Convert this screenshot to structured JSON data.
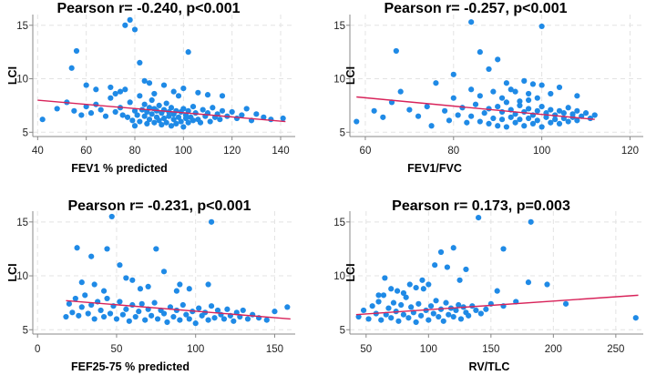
{
  "chart_data": [
    {
      "type": "scatter",
      "title": "Pearson r= -0.240, p<0.001",
      "xlabel": "FEV1 % predicted",
      "ylabel": "LCI",
      "xlim": [
        38,
        146
      ],
      "ylim": [
        4.6,
        16
      ],
      "xticks": [
        "40",
        "60",
        "80",
        "100",
        "120",
        "140"
      ],
      "yticks": [
        "5",
        "10",
        "15"
      ],
      "fit": {
        "x": [
          40,
          142
        ],
        "y": [
          8.0,
          6.0
        ]
      },
      "points_x": [
        42,
        48,
        52,
        55,
        58,
        60,
        62,
        64,
        66,
        68,
        70,
        72,
        74,
        75,
        76,
        77,
        78,
        79,
        80,
        80,
        81,
        82,
        82,
        83,
        84,
        84,
        85,
        85,
        86,
        86,
        87,
        87,
        88,
        88,
        89,
        89,
        90,
        90,
        91,
        91,
        92,
        92,
        93,
        93,
        94,
        94,
        95,
        95,
        96,
        96,
        97,
        97,
        98,
        98,
        99,
        99,
        100,
        100,
        101,
        101,
        102,
        102,
        103,
        104,
        104,
        105,
        106,
        107,
        108,
        109,
        110,
        111,
        112,
        113,
        114,
        115,
        116,
        118,
        120,
        122,
        124,
        126,
        128,
        130,
        133,
        136,
        141,
        54,
        56,
        76,
        78,
        80,
        82,
        86,
        88,
        102,
        60,
        64,
        70,
        74,
        72,
        84,
        92,
        96,
        100,
        106,
        110,
        116
      ],
      "points_y": [
        6.2,
        7.2,
        7.8,
        7.0,
        6.6,
        7.4,
        6.8,
        7.6,
        7.1,
        6.5,
        8.2,
        6.9,
        7.3,
        6.6,
        9.0,
        6.4,
        7.8,
        6.1,
        7.0,
        5.6,
        6.6,
        8.4,
        6.0,
        7.1,
        6.5,
        7.6,
        5.8,
        6.9,
        7.3,
        6.2,
        8.0,
        6.7,
        5.9,
        7.2,
        6.4,
        7.0,
        6.1,
        7.5,
        5.7,
        6.8,
        6.3,
        7.1,
        5.9,
        7.7,
        6.5,
        6.9,
        5.6,
        7.3,
        6.2,
        6.7,
        5.8,
        7.0,
        6.4,
        8.4,
        6.0,
        6.9,
        5.5,
        7.2,
        6.3,
        6.6,
        5.9,
        7.0,
        6.4,
        6.1,
        7.4,
        6.8,
        6.2,
        5.9,
        7.1,
        6.5,
        6.8,
        6.0,
        7.3,
        6.4,
        6.7,
        6.2,
        7.0,
        6.5,
        6.9,
        6.3,
        6.6,
        7.2,
        6.1,
        6.7,
        6.4,
        6.2,
        6.3,
        11.0,
        12.6,
        15.0,
        15.5,
        14.6,
        11.5,
        9.6,
        8.6,
        12.5,
        9.4,
        9.0,
        9.2,
        8.8,
        8.6,
        9.8,
        9.4,
        8.8,
        9.1,
        8.7,
        8.5,
        8.4
      ]
    },
    {
      "type": "scatter",
      "title": "Pearson r= -0.257, p<0.001",
      "xlabel": "FEV1/FVC",
      "ylabel": "LCI",
      "xlim": [
        56.5,
        123
      ],
      "ylim": [
        4.6,
        16
      ],
      "xticks": [
        "60",
        "80",
        "100",
        "120"
      ],
      "yticks": [
        "5",
        "10",
        "15"
      ],
      "fit": {
        "x": [
          58,
          112
        ],
        "y": [
          8.3,
          6.2
        ]
      },
      "points_x": [
        58,
        62,
        64,
        66,
        68,
        70,
        72,
        74,
        75,
        76,
        78,
        79,
        80,
        81,
        82,
        83,
        84,
        84,
        85,
        86,
        86,
        87,
        88,
        88,
        89,
        89,
        90,
        90,
        91,
        91,
        92,
        92,
        93,
        93,
        94,
        94,
        95,
        95,
        96,
        96,
        97,
        97,
        98,
        98,
        99,
        99,
        100,
        100,
        101,
        101,
        102,
        102,
        103,
        103,
        104,
        104,
        105,
        105,
        106,
        106,
        107,
        107,
        108,
        108,
        109,
        110,
        111,
        112,
        67,
        84,
        86,
        90,
        100,
        80,
        88,
        92,
        96,
        98,
        104,
        94,
        102,
        108,
        100,
        91,
        93,
        97,
        99,
        95,
        97
      ],
      "points_y": [
        6.0,
        7.0,
        6.4,
        7.8,
        8.8,
        7.1,
        6.5,
        7.4,
        5.6,
        9.6,
        7.0,
        6.1,
        8.2,
        6.6,
        7.3,
        5.9,
        9.0,
        6.5,
        7.6,
        6.0,
        8.4,
        6.8,
        5.8,
        7.2,
        6.3,
        8.8,
        5.6,
        7.4,
        6.2,
        6.9,
        5.5,
        7.8,
        6.4,
        7.1,
        5.9,
        6.7,
        6.2,
        7.5,
        5.6,
        6.9,
        6.3,
        7.2,
        5.8,
        6.6,
        6.1,
        7.0,
        5.5,
        7.4,
        6.4,
        6.8,
        5.9,
        7.1,
        6.2,
        6.6,
        5.8,
        7.0,
        6.3,
        6.8,
        6.0,
        7.3,
        6.4,
        6.7,
        6.1,
        7.0,
        6.5,
        6.8,
        6.3,
        6.6,
        12.6,
        15.3,
        12.5,
        11.8,
        14.9,
        10.4,
        10.9,
        9.6,
        9.8,
        9.5,
        9.2,
        8.8,
        8.6,
        8.4,
        9.4,
        8.2,
        9.0,
        8.6,
        8.2,
        7.9,
        8.0
      ]
    },
    {
      "type": "scatter",
      "title": "Pearson r= -0.231, p<0.001",
      "xlabel": "FEF25-75 % predicted",
      "ylabel": "LCI",
      "xlim": [
        -3,
        163
      ],
      "ylim": [
        4.6,
        16
      ],
      "xticks": [
        "0",
        "50",
        "100",
        "150"
      ],
      "yticks": [
        "5",
        "10",
        "15"
      ],
      "fit": {
        "x": [
          18,
          160
        ],
        "y": [
          7.7,
          6.0
        ]
      },
      "points_x": [
        18,
        20,
        22,
        24,
        26,
        28,
        30,
        32,
        34,
        36,
        38,
        40,
        42,
        44,
        46,
        48,
        50,
        52,
        54,
        56,
        58,
        60,
        62,
        64,
        66,
        68,
        70,
        72,
        74,
        76,
        78,
        80,
        82,
        84,
        86,
        88,
        90,
        92,
        94,
        96,
        98,
        100,
        102,
        104,
        106,
        108,
        110,
        112,
        114,
        116,
        118,
        120,
        122,
        124,
        126,
        128,
        130,
        133,
        136,
        140,
        145,
        150,
        158,
        25,
        34,
        44,
        47,
        52,
        60,
        65,
        75,
        80,
        90,
        110,
        28,
        36,
        42,
        56,
        70,
        88,
        96,
        108
      ],
      "points_y": [
        6.2,
        7.4,
        6.6,
        7.9,
        6.3,
        7.1,
        8.2,
        6.5,
        7.3,
        6.0,
        7.6,
        6.8,
        6.2,
        7.9,
        6.5,
        7.2,
        6.0,
        7.6,
        6.4,
        6.9,
        5.8,
        7.3,
        6.2,
        6.7,
        7.4,
        5.9,
        6.9,
        6.3,
        7.5,
        6.0,
        6.8,
        6.5,
        5.7,
        7.1,
        6.2,
        6.8,
        5.9,
        7.3,
        6.4,
        6.0,
        6.7,
        5.6,
        7.0,
        6.3,
        6.6,
        5.9,
        7.2,
        6.1,
        6.8,
        6.4,
        6.0,
        6.9,
        6.3,
        5.8,
        6.6,
        6.2,
        6.8,
        6.0,
        6.4,
        6.1,
        5.9,
        6.7,
        7.1,
        12.6,
        11.8,
        12.5,
        15.5,
        11.0,
        9.6,
        8.8,
        12.5,
        10.4,
        9.2,
        15.0,
        9.4,
        9.2,
        8.6,
        9.8,
        9.0,
        8.6,
        8.8,
        9.2
      ]
    },
    {
      "type": "scatter",
      "title": "Pearson r= 0.173, p=0.003",
      "xlabel": "RV/TLC",
      "ylabel": "LCI",
      "xlim": [
        37,
        272
      ],
      "ylim": [
        4.6,
        16
      ],
      "xticks": [
        "50",
        "100",
        "150",
        "200",
        "250"
      ],
      "yticks": [
        "5",
        "10",
        "15"
      ],
      "fit": {
        "x": [
          42,
          268
        ],
        "y": [
          6.4,
          8.2
        ]
      },
      "points_x": [
        44,
        48,
        52,
        55,
        58,
        60,
        62,
        64,
        66,
        68,
        70,
        72,
        74,
        76,
        78,
        80,
        82,
        84,
        86,
        88,
        90,
        92,
        94,
        96,
        98,
        100,
        102,
        104,
        106,
        108,
        110,
        112,
        114,
        116,
        118,
        120,
        122,
        124,
        126,
        128,
        130,
        132,
        135,
        138,
        142,
        146,
        150,
        155,
        160,
        170,
        182,
        195,
        210,
        266,
        110,
        120,
        130,
        140,
        160,
        180,
        105,
        115,
        125,
        100,
        90,
        80,
        70,
        60,
        65,
        75,
        85,
        95
      ],
      "points_y": [
        6.2,
        6.8,
        6.0,
        7.2,
        6.5,
        7.6,
        5.9,
        8.2,
        6.4,
        7.0,
        6.1,
        7.5,
        6.7,
        5.8,
        7.3,
        6.4,
        8.0,
        6.1,
        7.1,
        6.6,
        5.7,
        7.4,
        6.3,
        8.8,
        6.8,
        5.9,
        7.2,
        6.5,
        7.7,
        6.2,
        6.9,
        5.8,
        7.5,
        6.4,
        7.0,
        6.2,
        6.8,
        7.3,
        6.0,
        7.1,
        6.6,
        6.3,
        7.2,
        6.8,
        6.5,
        6.9,
        7.4,
        8.6,
        7.2,
        7.6,
        15.0,
        9.2,
        7.4,
        6.1,
        12.2,
        12.6,
        10.6,
        15.4,
        12.5,
        9.4,
        11.0,
        10.8,
        9.6,
        9.2,
        8.9,
        8.4,
        8.8,
        8.2,
        9.8,
        8.6,
        9.2,
        9.6
      ]
    }
  ]
}
